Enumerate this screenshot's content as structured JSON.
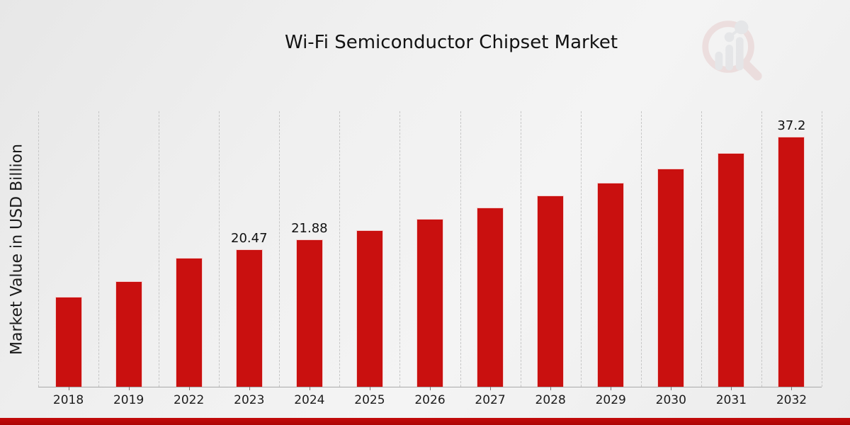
{
  "header": {
    "title": "Wi-Fi Semiconductor Chipset Market"
  },
  "icons": {
    "watermark": "magnifier-bar-chart-logo"
  },
  "colors": {
    "bar": "#c9100f",
    "footer_band": "#b20707",
    "gridline": "#c7c7c7",
    "text": "#161616",
    "watermark_ring": "#cf7d7d",
    "watermark_bars": "#a7acb3"
  },
  "chart_data": {
    "type": "bar",
    "title": "Wi-Fi Semiconductor Chipset Market",
    "xlabel": "",
    "ylabel": "Market Value in USD Billion",
    "categories": [
      "2018",
      "2019",
      "2022",
      "2023",
      "2024",
      "2025",
      "2026",
      "2027",
      "2028",
      "2029",
      "2030",
      "2031",
      "2032"
    ],
    "values": [
      13.4,
      15.7,
      19.2,
      20.47,
      21.88,
      23.3,
      25.0,
      26.7,
      28.5,
      30.4,
      32.5,
      34.8,
      37.2
    ],
    "data_labels": [
      "",
      "",
      "",
      "20.47",
      "21.88",
      "",
      "",
      "",
      "",
      "",
      "",
      "",
      "37.2"
    ],
    "ylim": [
      0,
      41
    ],
    "yticks_visible": false,
    "grid": "vertical-dashed",
    "legend": "none",
    "bar_color": "#c9100f"
  }
}
